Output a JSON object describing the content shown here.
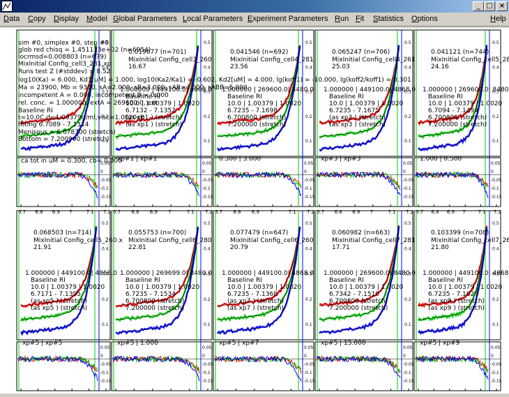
{
  "window": {
    "minimize_icon": "_",
    "maximize_icon": "□",
    "close_icon": "×"
  },
  "menubar": {
    "items": [
      "Data",
      "Copy",
      "Display",
      "Model",
      "Global Parameters",
      "Local Parameters",
      "Experiment Parameters",
      "Run",
      "Fit",
      "Statistics",
      "Options",
      "Help"
    ]
  },
  "info": {
    "lines": [
      "sim #0, simplex #0, step #0",
      "glob red chisq = 1.451113e+02 (n=6954)",
      "locrmsd=0.008803 (n=679)",
      "MixInitial Config_cell3_281.xp",
      "Runs test Z (#stddev) = 8.52",
      "log10(Ka) = 6.000, Kd1[uM] = 1.000, log10(Ka2/Ka1) = -0.602, Kd2[uM] = 4.000, lg(koff1) = -10.000, lg(koff2/koff1) = 0.301",
      "Ma = 23900, Mb = 9300, sA=2.000, sB=3.000, sAB=4.000, sABB=5.000",
      "incompetent A = 0.000, incompetent B = 0.000",
      "rel. conc. = 1.000000, extA = 269600.0, ext"
    ],
    "baseline_title": "Baseline RI",
    "panel1": [
      "t=10.0C,d=1.00379g/ml,visc=1.0020cP",
      "fitting 6.7089 - 7.1314",
      "Menisous = 6.678700 (stretch)",
      "Bottom = 7.200000 (stretch)"
    ],
    "resid1": "ca tot in uM = 0.300,  cb= 0.300"
  },
  "panels": [
    {
      "rmsd": "0.019677 (n=701)",
      "file": "MixInitial Config_cell3_260",
      "extra": "16.67",
      "ext": "1.000000 | 449100.0| 4868.0",
      "meta": [
        "10.0 | 1.00379 | 1.0020",
        "6.7132 - 7.1352",
        "(as xp1 ) (stretch)",
        "(as xp1 ) (stretch)"
      ],
      "resid": "xp#1  | xp#1"
    },
    {
      "rmsd": "0.041546 (n=692)",
      "file": "MixInitial Config_cell4_281",
      "extra": "23.56",
      "ext": "1.000000 | 269600.0| 8480.0",
      "meta": [
        "10.0 | 1.00379 | 1.0020",
        "6.7235 - 7.1698",
        "6.700800 (stretch)",
        "7.200000 (stretch)"
      ],
      "resid": "0.300 | 3.000"
    },
    {
      "rmsd": "0.065247 (n=706)",
      "file": "MixInitial Config_cell4_261",
      "extra": "25.03",
      "ext": "1.000000 | 449100.0| 4868.0",
      "meta": [
        "10.0 | 1.00379 | 1.0020",
        "6.7235 - 7.1675",
        "(as xp3 ) (stretch)",
        "(as xp3 ) (stretch)"
      ],
      "resid": "xp#3  | xp#3"
    },
    {
      "rmsd": "0.041121 (n=744)",
      "file": "MixInitial Config_cell5_280.xp",
      "extra": "24.16",
      "ext": "1.000000 | 269600.0| 8480.0",
      "meta": [
        "10.0 | 1.00379 | 1.0020",
        "6.7094 - 7.1494",
        "6.700800 (stretch)",
        "7.200000 (stretch)"
      ],
      "resid": "1.000 | 0.500"
    },
    {
      "rmsd": "0.068503 (n=714)",
      "file": "MixInitial Config_cell5_260.x",
      "extra": "21.91",
      "ext": "1.000000 | 449100.0| 4868.0",
      "meta": [
        "10.0 | 1.00379 | 1.0020",
        "6.7171 - 7.1395",
        "(as xp5 ) (stretch)",
        "(as xp5 ) (stretch)"
      ],
      "resid": "xp#5  | xp#5"
    },
    {
      "rmsd": "0.055753 (n=700)",
      "file": "MixInitial Config_cell6_280",
      "extra": "22.81",
      "ext": "1.000000 | 269699.0| 8480.0",
      "meta": [
        "10.0 | 1.00379 | 1.0020",
        "6.7235 - 7.1534",
        "6.700800 (stretch)",
        "7.200000 (stretch)"
      ],
      "resid": "xp#5  | 1.000"
    },
    {
      "rmsd": "0.077479 (n=647)",
      "file": "MixInitial Config_cell6_260",
      "extra": "20.79",
      "ext": "1.000000 | 449100.0| 4868.0",
      "meta": [
        "10.0 | 1.00379 | 1.0020",
        "6.7235 - 7.1368",
        "(as xp7 ) (stretch)",
        "(as xp7 ) (stretch)"
      ],
      "resid": "xp#5  | xp#7"
    },
    {
      "rmsd": "0.060982 (n=663)",
      "file": "MixInitial Config_cell7_281",
      "extra": "17.71",
      "ext": "1.000000 | 269600.0| 8480.0",
      "meta": [
        "10.0 | 1.00379 | 1.0020",
        "6.7342 - 7.1510",
        "6.700800 (stretch)",
        "7.200000 (stretch)"
      ],
      "resid": "xp#5  | 15.000"
    },
    {
      "rmsd": "0.103399 (n=708)",
      "file": "MixInitial Config_cell7_261.xp",
      "extra": "21.80",
      "ext": "1.000000 | 449100.0| 4868.0",
      "meta": [
        "10.0 | 1.00379 | 1.0020",
        "6.7235 - 7.1624",
        "(as xp9 ) (stretch)",
        "(as xp9 ) (stretch)"
      ],
      "resid": "xp#5  | xp#9"
    }
  ],
  "axes": {
    "x_ticks": [
      "6.7",
      "6.8",
      "6.9",
      "7",
      "7.1",
      "7.2"
    ],
    "y_ticks_main": [
      "0.5",
      "0.4",
      "0.3",
      "0.2",
      "0.1"
    ],
    "y_ticks_resid": [
      "0.05",
      "0",
      "-0.05",
      "-0.1",
      "-0.15"
    ]
  },
  "colors": {
    "red": "#ff0000",
    "green": "#00cc00",
    "blue": "#0000ff",
    "bg": "#ffffff"
  }
}
